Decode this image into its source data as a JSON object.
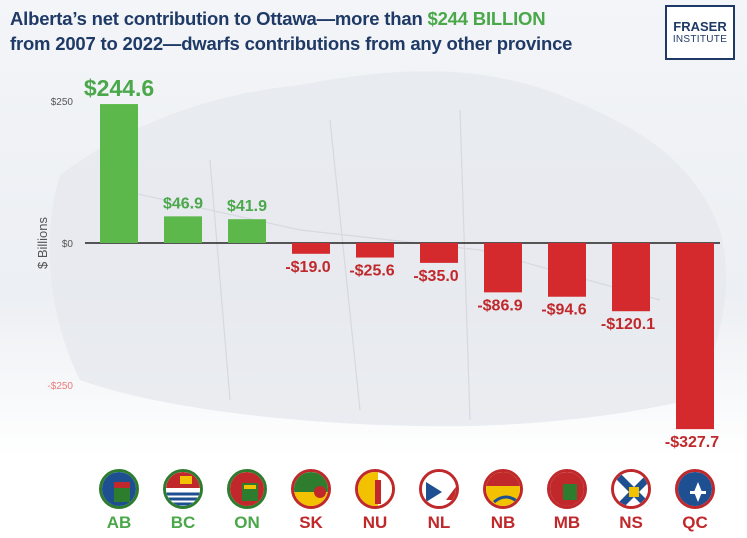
{
  "title": {
    "line1_before": "Alberta’s net contribution to Ottawa—more than ",
    "line1_highlight": "$244 BILLION",
    "line2": "from 2007 to 2022—dwarfs contributions from any other province"
  },
  "logo": {
    "line1": "FRASER",
    "line2": "INSTITUTE"
  },
  "colors": {
    "positive": "#5cb84a",
    "positive_label": "#4aa84a",
    "negative": "#d42a2e",
    "negative_label": "#c0282b",
    "title": "#1f3a66"
  },
  "chart_data": {
    "type": "bar",
    "categories": [
      "AB",
      "BC",
      "ON",
      "SK",
      "NU",
      "NL",
      "NB",
      "MB",
      "NS",
      "QC"
    ],
    "values": [
      244.6,
      46.9,
      41.9,
      -19.0,
      -25.6,
      -35.0,
      -86.9,
      -94.6,
      -120.1,
      -327.7
    ],
    "data_labels": [
      "$244.6",
      "$46.9",
      "$41.9",
      "-$19.0",
      "-$25.6",
      "-$35.0",
      "-$86.9",
      "-$94.6",
      "-$120.1",
      "-$327.7"
    ],
    "ylabel": "$ Billions",
    "yticks": [
      250,
      0,
      -250
    ],
    "ytick_labels": [
      "$250",
      "$0",
      "-$250"
    ],
    "ylim": [
      -330,
      260
    ],
    "grid": false,
    "legend": "none"
  },
  "flags": [
    {
      "code": "AB",
      "icon": "alberta-flag-icon"
    },
    {
      "code": "BC",
      "icon": "british-columbia-flag-icon"
    },
    {
      "code": "ON",
      "icon": "ontario-flag-icon"
    },
    {
      "code": "SK",
      "icon": "saskatchewan-flag-icon"
    },
    {
      "code": "NU",
      "icon": "nunavut-flag-icon"
    },
    {
      "code": "NL",
      "icon": "newfoundland-flag-icon"
    },
    {
      "code": "NB",
      "icon": "new-brunswick-flag-icon"
    },
    {
      "code": "MB",
      "icon": "manitoba-flag-icon"
    },
    {
      "code": "NS",
      "icon": "nova-scotia-flag-icon"
    },
    {
      "code": "QC",
      "icon": "quebec-flag-icon"
    }
  ]
}
